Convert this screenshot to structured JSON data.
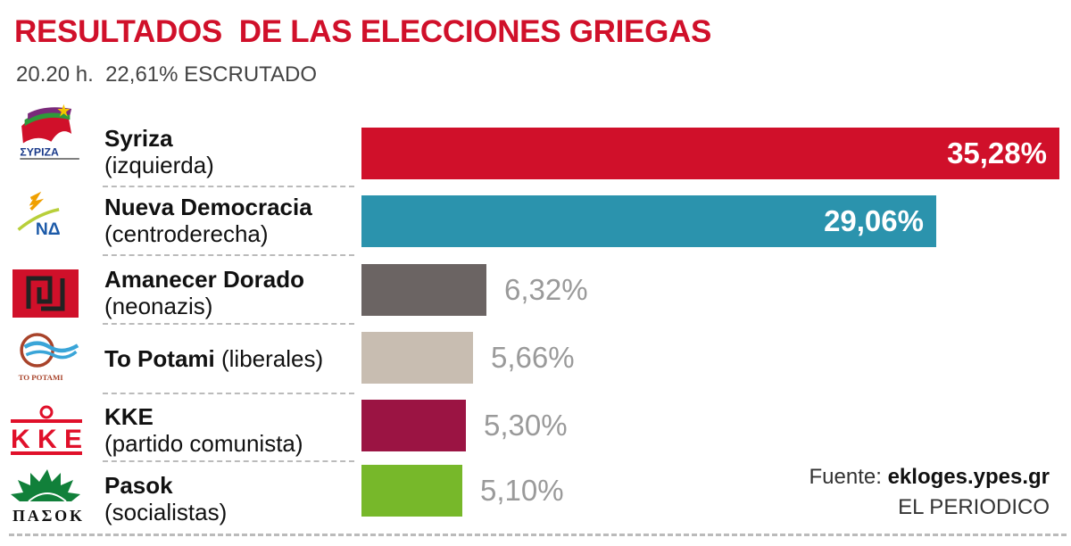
{
  "header": {
    "title": "RESULTADOS  DE LAS ELECCIONES GRIEGAS",
    "subtitle": "20.20 h.  22,61% ESCRUTADO"
  },
  "footer": {
    "source_label": "Fuente:",
    "source_value": "ekloges.ypes.gr",
    "publisher": "EL PERIODICO"
  },
  "logos": {
    "syriza": "ΣΥΡΙΖΑ",
    "nd": "ΝΔ",
    "potami": "TO POTAMI",
    "kke": "KKE",
    "pasok": "ΠΑΣΟΚ"
  },
  "chart_data": {
    "type": "bar",
    "orientation": "horizontal",
    "title": "RESULTADOS  DE LAS ELECCIONES GRIEGAS",
    "subtitle": "20.20 h.  22,61% ESCRUTADO",
    "categories": [
      "Syriza",
      "Nueva Democracia",
      "Amanecer Dorado",
      "To Potami",
      "KKE",
      "Pasok"
    ],
    "descriptions": [
      "(izquierda)",
      "(centroderecha)",
      "(neonazis)",
      "(liberales)",
      "(partido comunista)",
      "(socialistas)"
    ],
    "values": [
      35.28,
      29.06,
      6.32,
      5.66,
      5.3,
      5.1
    ],
    "value_labels": [
      "35,28%",
      "29,06%",
      "6,32%",
      "5,66%",
      "5,30%",
      "5,10%"
    ],
    "colors": [
      "#d0102a",
      "#2b93ad",
      "#6b6463",
      "#c8bdb1",
      "#9b1443",
      "#77b82a"
    ],
    "unit": "%",
    "grid": false,
    "legend": "none"
  }
}
